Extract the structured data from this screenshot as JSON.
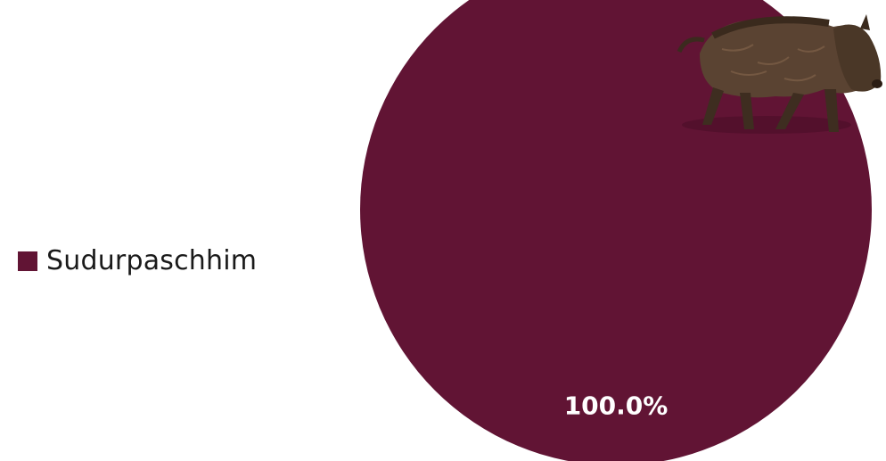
{
  "chart_data": {
    "type": "pie",
    "series": [
      {
        "name": "Sudurpaschhim",
        "value": 100.0,
        "label": "100.0%"
      }
    ],
    "legend_position": "left",
    "colors": {
      "slice": "#611434",
      "label_text": "#ffffff",
      "legend_text": "#1a1a1a"
    },
    "decoration": "wild-boar-icon"
  }
}
